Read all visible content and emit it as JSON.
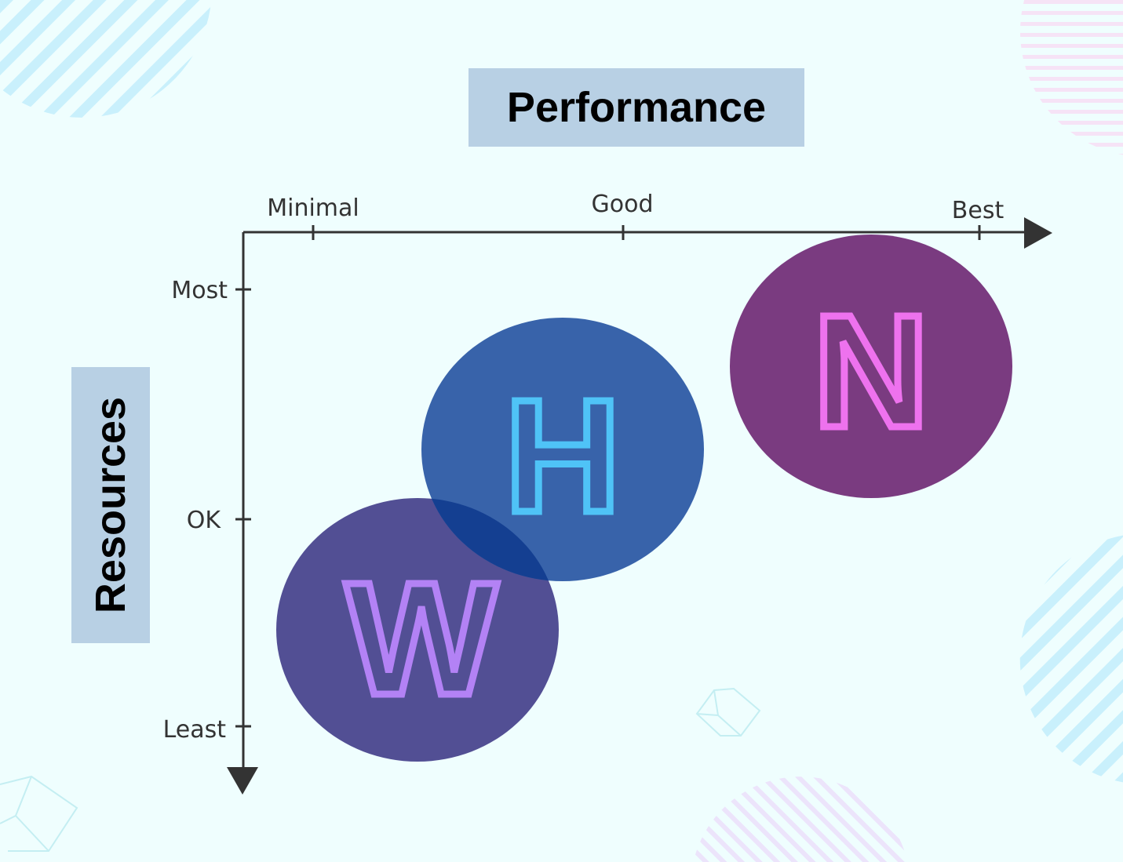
{
  "x_axis": {
    "title": "Performance",
    "ticks": [
      "Minimal",
      "Good",
      "Best"
    ]
  },
  "y_axis": {
    "title": "Resources",
    "ticks": [
      "Most",
      "OK",
      "Least"
    ]
  },
  "nodes": [
    {
      "letter": "W",
      "fill": "#524f94",
      "stroke": "#b382f5"
    },
    {
      "letter": "H",
      "fill": "#3863aa",
      "stroke": "#4fc3f7"
    },
    {
      "letter": "N",
      "fill": "#7a3b80",
      "stroke": "#ee72ee"
    }
  ],
  "colors": {
    "background": "#effefe",
    "title_box": "#b8d0e4",
    "axis": "#333333",
    "overlap": "#143f91"
  }
}
